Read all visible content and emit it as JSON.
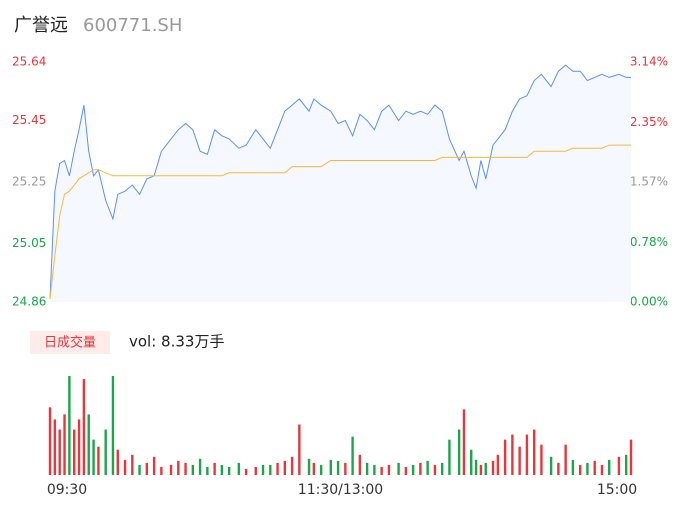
{
  "chart_data": {
    "type": "intraday",
    "title": "广誉远",
    "subtitle": "600771.SH",
    "x": [
      0,
      2,
      4,
      6,
      8,
      10,
      12,
      14,
      16,
      18,
      20,
      23,
      26,
      28,
      31,
      34,
      37,
      40,
      43,
      46,
      50,
      53,
      56,
      59,
      62,
      65,
      68,
      71,
      74,
      78,
      81,
      85,
      88,
      91,
      94,
      97,
      100,
      103,
      107,
      109,
      112,
      116,
      119,
      122,
      125,
      128,
      131,
      134,
      137,
      140,
      144,
      147,
      150,
      153,
      156,
      159,
      162,
      165,
      169,
      171,
      174,
      176,
      178,
      180,
      183,
      185,
      188,
      191,
      194,
      197,
      200,
      203,
      207,
      210,
      213,
      216,
      219,
      222,
      225,
      228,
      231,
      235,
      238,
      240
    ],
    "xlim": [
      0,
      240
    ],
    "xticks": [
      {
        "value": 0,
        "label": "09:30"
      },
      {
        "value": 120,
        "label": "11:30/13:00"
      },
      {
        "value": 240,
        "label": "15:00"
      }
    ],
    "ylim": [
      24.86,
      25.64
    ],
    "yticks": [
      24.86,
      25.05,
      25.25,
      25.45,
      25.64
    ],
    "ytick_colors": [
      "#1aa64a",
      "#1aa64a",
      "#999999",
      "#e8363b",
      "#e8363b"
    ],
    "y2lim": [
      0,
      3.14
    ],
    "y2ticks": [
      {
        "value": 0,
        "label": "0.00%"
      },
      {
        "value": 0.78,
        "label": "0.78%"
      },
      {
        "value": 1.57,
        "label": "1.57%"
      },
      {
        "value": 2.35,
        "label": "2.35%"
      },
      {
        "value": 3.14,
        "label": "3.14%"
      }
    ],
    "series": [
      {
        "color": "#5b8ff9",
        "values": [
          24.87,
          25.22,
          25.31,
          25.32,
          25.27,
          25.35,
          25.42,
          25.5,
          25.35,
          25.27,
          25.29,
          25.19,
          25.13,
          25.21,
          25.22,
          25.24,
          25.21,
          25.26,
          25.27,
          25.35,
          25.39,
          25.42,
          25.44,
          25.42,
          25.35,
          25.34,
          25.42,
          25.4,
          25.39,
          25.36,
          25.37,
          25.42,
          25.39,
          25.36,
          25.42,
          25.48,
          25.5,
          25.52,
          25.48,
          25.52,
          25.5,
          25.48,
          25.44,
          25.45,
          25.4,
          25.47,
          25.45,
          25.42,
          25.48,
          25.5,
          25.45,
          25.48,
          25.47,
          25.48,
          25.47,
          25.5,
          25.48,
          25.39,
          25.32,
          25.35,
          25.27,
          25.23,
          25.32,
          25.26,
          25.37,
          25.39,
          25.42,
          25.48,
          25.52,
          25.53,
          25.58,
          25.6,
          25.56,
          25.61,
          25.63,
          25.61,
          25.61,
          25.58,
          25.59,
          25.6,
          25.59,
          25.6,
          25.59,
          25.59
        ]
      },
      {
        "color": "#f5b93a",
        "values": [
          24.87,
          25.01,
          25.14,
          25.21,
          25.22,
          25.24,
          25.26,
          25.27,
          25.28,
          25.29,
          25.29,
          25.28,
          25.27,
          25.27,
          25.27,
          25.27,
          25.27,
          25.27,
          25.27,
          25.27,
          25.27,
          25.27,
          25.27,
          25.27,
          25.27,
          25.27,
          25.27,
          25.27,
          25.28,
          25.28,
          25.28,
          25.28,
          25.28,
          25.28,
          25.28,
          25.28,
          25.3,
          25.3,
          25.3,
          25.3,
          25.3,
          25.32,
          25.32,
          25.32,
          25.32,
          25.32,
          25.32,
          25.32,
          25.32,
          25.32,
          25.32,
          25.32,
          25.32,
          25.32,
          25.32,
          25.32,
          25.33,
          25.33,
          25.33,
          25.33,
          25.33,
          25.33,
          25.33,
          25.33,
          25.33,
          25.33,
          25.33,
          25.33,
          25.33,
          25.33,
          25.35,
          25.35,
          25.35,
          25.35,
          25.35,
          25.36,
          25.36,
          25.36,
          25.36,
          25.36,
          25.37,
          25.37,
          25.37,
          25.37
        ]
      }
    ],
    "volume": {
      "name": "日成交量",
      "label": "vol: 8.33万手",
      "ylim": [
        0,
        100
      ],
      "up_color": "#e8363b",
      "down_color": "#1aa64a",
      "values": [
        67,
        55,
        45,
        60,
        98,
        45,
        55,
        95,
        60,
        35,
        28,
        45,
        98,
        25,
        15,
        20,
        10,
        12,
        18,
        8,
        10,
        14,
        12,
        10,
        16,
        8,
        12,
        10,
        8,
        12,
        6,
        8,
        10,
        10,
        12,
        14,
        18,
        50,
        16,
        12,
        10,
        15,
        14,
        12,
        38,
        20,
        12,
        10,
        8,
        10,
        12,
        8,
        10,
        12,
        14,
        10,
        12,
        35,
        45,
        65,
        25,
        15,
        10,
        12,
        14,
        20,
        35,
        40,
        28,
        40,
        45,
        30,
        18,
        12,
        30,
        15,
        10,
        12,
        14,
        10,
        15,
        18,
        20,
        35
      ]
    }
  }
}
